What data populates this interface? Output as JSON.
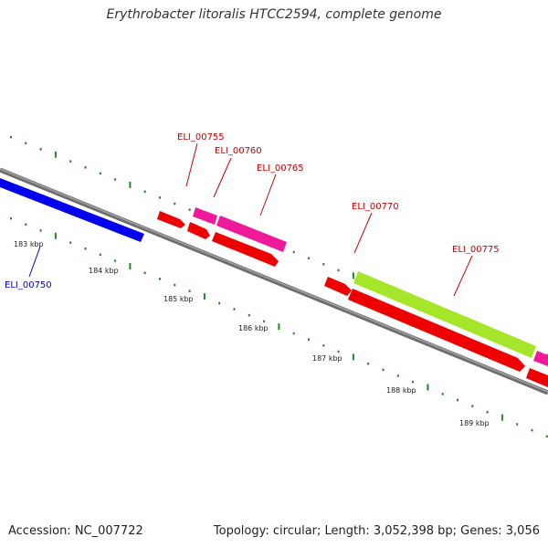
{
  "title": "Erythrobacter litoralis HTCC2594, complete genome",
  "footer": {
    "accession": "Accession: NC_007722",
    "topology": "Topology: circular; Length: 3,052,398 bp; Genes: 3,056"
  },
  "colors": {
    "backbone": "#808080",
    "tick": "#1f8a1f",
    "blue_gene": "#0000ee",
    "red_gene": "#ee0000",
    "pink_gene": "#ee1a9a",
    "green_gene": "#a6e62a"
  },
  "kbp_labels": [
    "183 kbp",
    "184 kbp",
    "185 kbp",
    "186 kbp",
    "187 kbp",
    "188 kbp",
    "189 kbp"
  ],
  "gene_labels": [
    {
      "id": "ELI_00750",
      "color": "#0000cc"
    },
    {
      "id": "ELI_00755",
      "color": "#cc0000"
    },
    {
      "id": "ELI_00760",
      "color": "#cc0000"
    },
    {
      "id": "ELI_00765",
      "color": "#cc0000"
    },
    {
      "id": "ELI_00770",
      "color": "#cc0000"
    },
    {
      "id": "ELI_00775",
      "color": "#cc0000"
    }
  ]
}
